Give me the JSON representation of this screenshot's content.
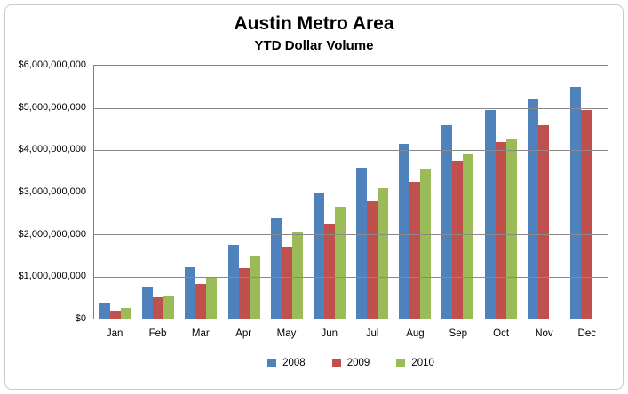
{
  "chart": {
    "title": "Austin Metro Area",
    "subtitle": "YTD Dollar Volume"
  },
  "chart_data": {
    "type": "bar",
    "title": "Austin Metro Area",
    "subtitle": "YTD Dollar Volume",
    "xlabel": "",
    "ylabel": "",
    "categories": [
      "Jan",
      "Feb",
      "Mar",
      "Apr",
      "May",
      "Jun",
      "Jul",
      "Aug",
      "Sep",
      "Oct",
      "Nov",
      "Dec"
    ],
    "series": [
      {
        "name": "2008",
        "color": "#4f81bd",
        "values": [
          350000000,
          750000000,
          1225000000,
          1750000000,
          2375000000,
          2975000000,
          3575000000,
          4150000000,
          4600000000,
          4950000000,
          5200000000,
          5500000000
        ]
      },
      {
        "name": "2009",
        "color": "#c0504d",
        "values": [
          200000000,
          500000000,
          825000000,
          1200000000,
          1700000000,
          2250000000,
          2800000000,
          3250000000,
          3750000000,
          4200000000,
          4600000000,
          4950000000
        ]
      },
      {
        "name": "2010",
        "color": "#9bbb59",
        "values": [
          250000000,
          530000000,
          1000000000,
          1500000000,
          2050000000,
          2650000000,
          3100000000,
          3550000000,
          3900000000,
          4250000000,
          null,
          null
        ]
      }
    ],
    "ylim": [
      0,
      6000000000
    ],
    "y_tick_labels": [
      "$6,000,000,000",
      "$5,000,000,000",
      "$4,000,000,000",
      "$3,000,000,000",
      "$2,000,000,000",
      "$1,000,000,000",
      "$0"
    ],
    "grid": "horizontal-only",
    "legend_position": "bottom-center"
  },
  "colors": {
    "plot_border": "#808080",
    "gridline": "#8a8a8a",
    "frame_border": "#c9c9c9",
    "text": "#000000",
    "background": "#ffffff"
  }
}
